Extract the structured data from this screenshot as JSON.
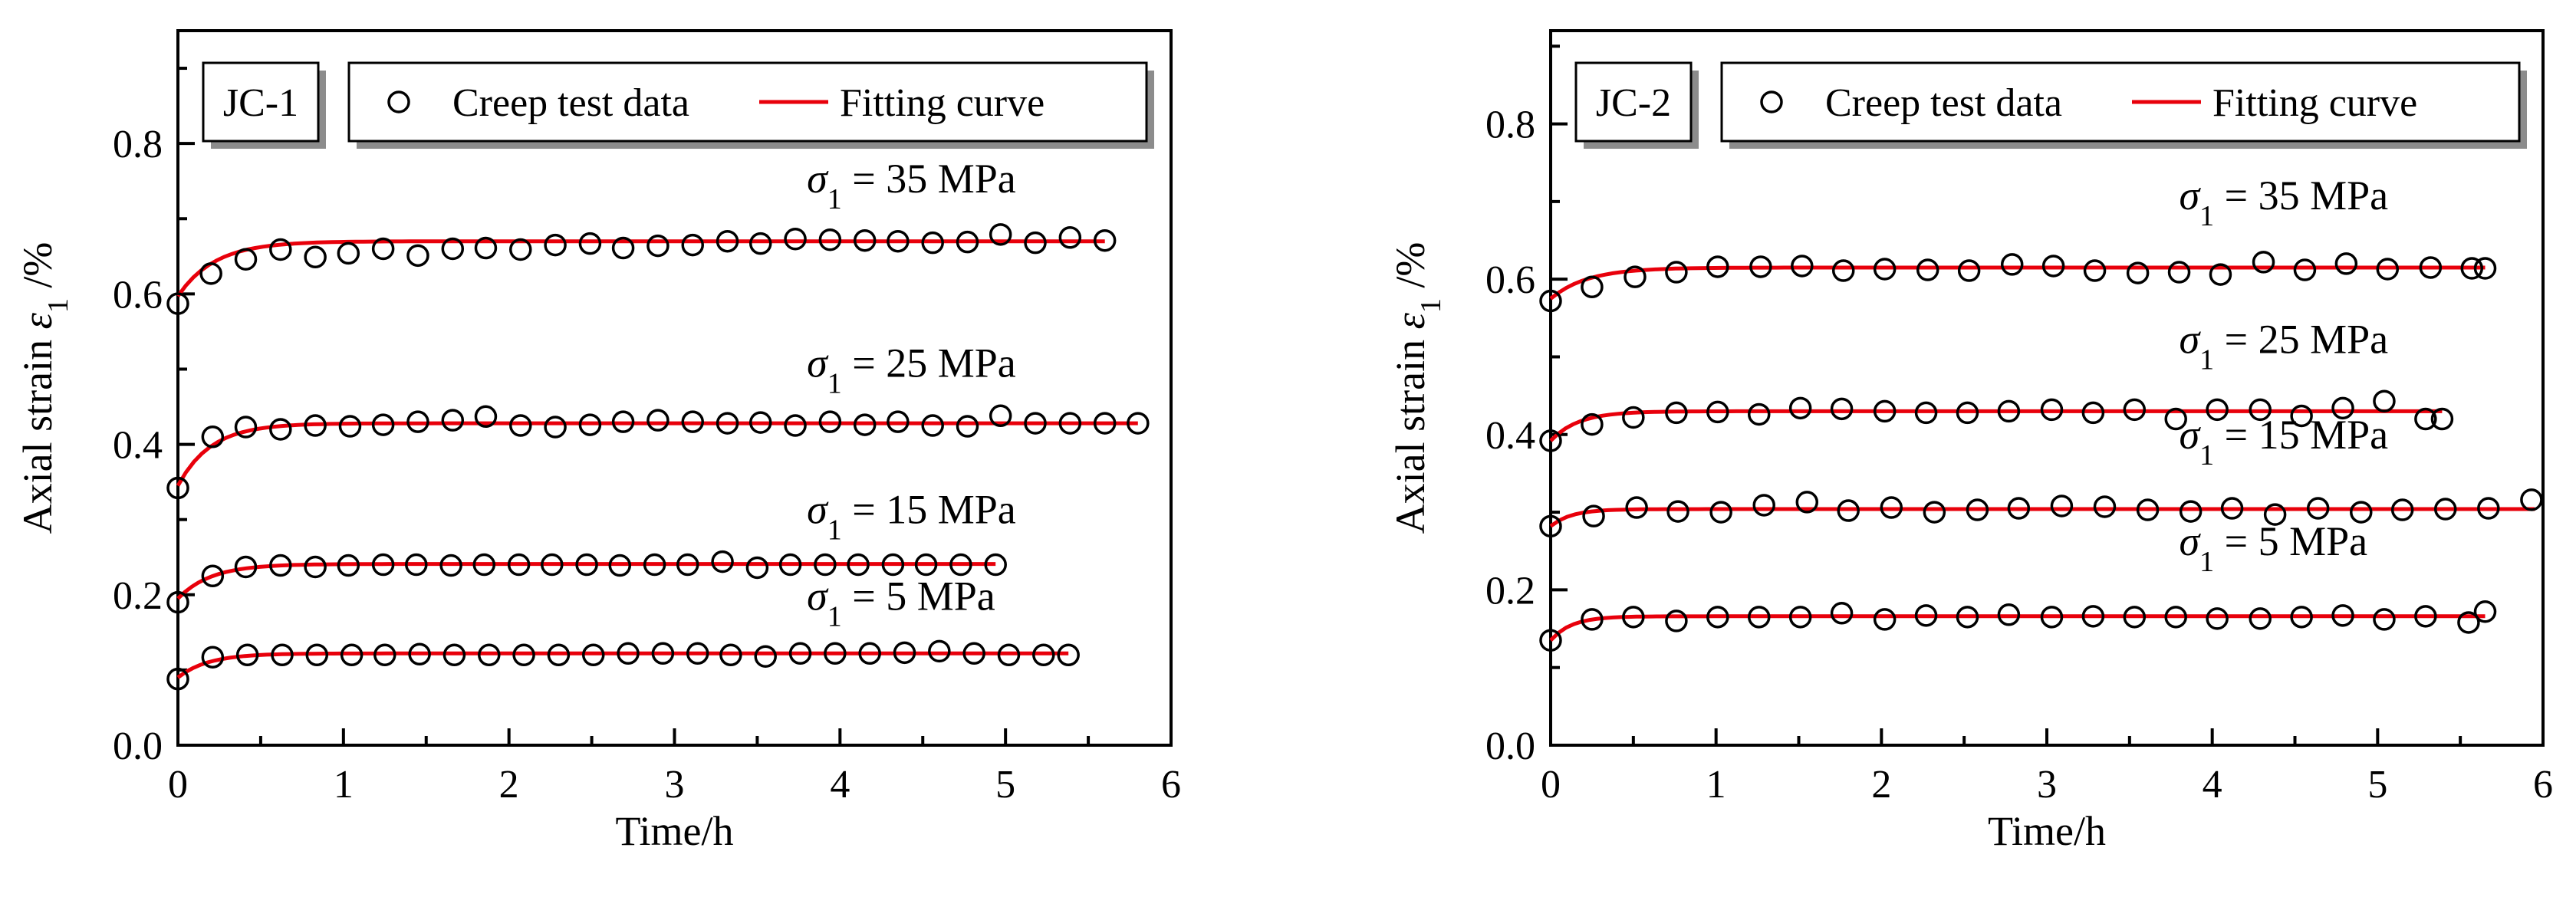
{
  "chart_data": [
    {
      "type": "scatter",
      "panel_label": "JC-1",
      "xlabel": "Time/h",
      "ylabel": {
        "prefix": "Axial strain ",
        "symbol": "ε",
        "sub": "1",
        "suffix": " /%"
      },
      "xlim": [
        0,
        6
      ],
      "ylim": [
        0,
        0.95
      ],
      "xticks": [
        0,
        1,
        2,
        3,
        4,
        5,
        6
      ],
      "yticks": [
        0.0,
        0.2,
        0.4,
        0.6,
        0.8
      ],
      "ytick_labels": [
        "0.0",
        "0.2",
        "0.4",
        "0.6",
        "0.8"
      ],
      "legend": {
        "markers_label": "Creep test data",
        "line_label": "Fitting curve"
      },
      "series": [
        {
          "name": "σ1 = 35 MPa",
          "label_symbol": "σ",
          "label_sub": "1",
          "label_value": " = 35 MPa",
          "fit": {
            "a": 0.597,
            "b": 0.073,
            "k": 4.5,
            "xend": 5.6
          },
          "label_pos": [
            3.8,
            0.735
          ],
          "x": [
            0,
            0.2,
            0.41,
            0.62,
            0.83,
            1.03,
            1.24,
            1.45,
            1.66,
            1.86,
            2.07,
            2.28,
            2.49,
            2.69,
            2.9,
            3.11,
            3.32,
            3.52,
            3.73,
            3.94,
            4.15,
            4.35,
            4.56,
            4.77,
            4.97,
            5.18,
            5.39,
            5.6
          ],
          "y": [
            0.587,
            0.627,
            0.646,
            0.659,
            0.649,
            0.654,
            0.66,
            0.651,
            0.66,
            0.661,
            0.659,
            0.665,
            0.667,
            0.661,
            0.664,
            0.665,
            0.67,
            0.667,
            0.673,
            0.672,
            0.671,
            0.67,
            0.668,
            0.669,
            0.679,
            0.668,
            0.675,
            0.671
          ]
        },
        {
          "name": "σ1 = 25 MPa",
          "label_symbol": "σ",
          "label_sub": "1",
          "label_value": " = 25 MPa",
          "fit": {
            "a": 0.345,
            "b": 0.083,
            "k": 5.0,
            "xend": 5.8
          },
          "label_pos": [
            3.8,
            0.49
          ],
          "x": [
            0,
            0.21,
            0.41,
            0.62,
            0.83,
            1.04,
            1.24,
            1.45,
            1.66,
            1.86,
            2.07,
            2.28,
            2.49,
            2.69,
            2.9,
            3.11,
            3.32,
            3.52,
            3.73,
            3.94,
            4.15,
            4.35,
            4.56,
            4.77,
            4.97,
            5.18,
            5.39,
            5.6,
            5.8
          ],
          "y": [
            0.342,
            0.41,
            0.423,
            0.42,
            0.425,
            0.424,
            0.426,
            0.43,
            0.432,
            0.437,
            0.425,
            0.423,
            0.426,
            0.43,
            0.432,
            0.43,
            0.428,
            0.429,
            0.425,
            0.43,
            0.426,
            0.43,
            0.425,
            0.424,
            0.438,
            0.428,
            0.428,
            0.428,
            0.428
          ]
        },
        {
          "name": "σ1 = 15 MPa",
          "label_symbol": "σ",
          "label_sub": "1",
          "label_value": " = 15 MPa",
          "fit": {
            "a": 0.195,
            "b": 0.046,
            "k": 5.0,
            "xend": 4.94
          },
          "label_pos": [
            3.8,
            0.295
          ],
          "x": [
            0,
            0.21,
            0.41,
            0.62,
            0.83,
            1.03,
            1.24,
            1.44,
            1.65,
            1.85,
            2.06,
            2.26,
            2.47,
            2.67,
            2.88,
            3.08,
            3.29,
            3.5,
            3.7,
            3.91,
            4.11,
            4.32,
            4.52,
            4.73,
            4.94
          ],
          "y": [
            0.19,
            0.225,
            0.237,
            0.239,
            0.237,
            0.239,
            0.24,
            0.24,
            0.239,
            0.24,
            0.24,
            0.24,
            0.24,
            0.239,
            0.24,
            0.24,
            0.244,
            0.236,
            0.24,
            0.24,
            0.24,
            0.24,
            0.24,
            0.24,
            0.24
          ]
        },
        {
          "name": "σ1 = 5 MPa",
          "label_symbol": "σ",
          "label_sub": "1",
          "label_value": " = 5 MPa",
          "fit": {
            "a": 0.09,
            "b": 0.032,
            "k": 5.5,
            "xend": 5.38
          },
          "label_pos": [
            3.8,
            0.18
          ],
          "x": [
            0,
            0.21,
            0.42,
            0.63,
            0.84,
            1.05,
            1.25,
            1.46,
            1.67,
            1.88,
            2.09,
            2.3,
            2.51,
            2.72,
            2.93,
            3.14,
            3.34,
            3.55,
            3.76,
            3.97,
            4.18,
            4.39,
            4.6,
            4.81,
            5.02,
            5.23,
            5.38
          ],
          "y": [
            0.088,
            0.117,
            0.12,
            0.12,
            0.12,
            0.12,
            0.12,
            0.121,
            0.12,
            0.12,
            0.12,
            0.12,
            0.12,
            0.122,
            0.122,
            0.122,
            0.12,
            0.118,
            0.122,
            0.122,
            0.122,
            0.123,
            0.125,
            0.122,
            0.12,
            0.12,
            0.12
          ]
        }
      ]
    },
    {
      "type": "scatter",
      "panel_label": "JC-2",
      "xlabel": "Time/h",
      "ylabel": {
        "prefix": "Axial strain ",
        "symbol": "ε",
        "sub": "1",
        "suffix": " /%"
      },
      "xlim": [
        0,
        6
      ],
      "ylim": [
        0,
        0.92
      ],
      "xticks": [
        0,
        1,
        2,
        3,
        4,
        5,
        6
      ],
      "yticks": [
        0.0,
        0.2,
        0.4,
        0.6,
        0.8
      ],
      "ytick_labels": [
        "0.0",
        "0.2",
        "0.4",
        "0.6",
        "0.8"
      ],
      "legend": {
        "markers_label": "Creep test data",
        "line_label": "Fitting curve"
      },
      "series": [
        {
          "name": "σ1 = 35 MPa",
          "label_symbol": "σ",
          "label_sub": "1",
          "label_value": " = 35 MPa",
          "fit": {
            "a": 0.575,
            "b": 0.04,
            "k": 4.5,
            "xend": 5.65
          },
          "label_pos": [
            3.8,
            0.69
          ],
          "x": [
            0,
            0.25,
            0.51,
            0.76,
            1.01,
            1.27,
            1.52,
            1.77,
            2.02,
            2.28,
            2.53,
            2.79,
            3.04,
            3.29,
            3.55,
            3.8,
            4.05,
            4.31,
            4.56,
            4.81,
            5.06,
            5.32,
            5.57,
            5.65
          ],
          "y": [
            0.572,
            0.59,
            0.603,
            0.609,
            0.616,
            0.616,
            0.617,
            0.611,
            0.613,
            0.612,
            0.611,
            0.619,
            0.617,
            0.611,
            0.608,
            0.609,
            0.606,
            0.622,
            0.612,
            0.62,
            0.613,
            0.615,
            0.614,
            0.614
          ]
        },
        {
          "name": "σ1 = 25 MPa",
          "label_symbol": "σ",
          "label_sub": "1",
          "label_value": " = 25 MPa",
          "fit": {
            "a": 0.392,
            "b": 0.038,
            "k": 6.0,
            "xend": 5.39
          },
          "label_pos": [
            3.8,
            0.505
          ],
          "x": [
            0,
            0.25,
            0.5,
            0.76,
            1.01,
            1.26,
            1.51,
            1.76,
            2.02,
            2.27,
            2.52,
            2.77,
            3.03,
            3.28,
            3.53,
            3.78,
            4.03,
            4.29,
            4.54,
            4.79,
            5.04,
            5.29,
            5.39
          ],
          "y": [
            0.392,
            0.413,
            0.422,
            0.428,
            0.429,
            0.426,
            0.434,
            0.433,
            0.43,
            0.428,
            0.428,
            0.43,
            0.432,
            0.428,
            0.432,
            0.42,
            0.432,
            0.432,
            0.424,
            0.434,
            0.443,
            0.42,
            0.42
          ]
        },
        {
          "name": "σ1 = 15 MPa",
          "label_symbol": "σ",
          "label_sub": "1",
          "label_value": " = 15 MPa",
          "fit": {
            "a": 0.282,
            "b": 0.022,
            "k": 8.0,
            "xend": 5.95
          },
          "label_pos": [
            3.8,
            0.382
          ],
          "x": [
            0,
            0.26,
            0.52,
            0.77,
            1.03,
            1.29,
            1.55,
            1.8,
            2.06,
            2.32,
            2.58,
            2.83,
            3.09,
            3.35,
            3.61,
            3.87,
            4.12,
            4.38,
            4.64,
            4.9,
            5.15,
            5.41,
            5.67,
            5.93
          ],
          "y": [
            0.282,
            0.295,
            0.306,
            0.301,
            0.3,
            0.309,
            0.313,
            0.302,
            0.306,
            0.3,
            0.303,
            0.305,
            0.308,
            0.307,
            0.303,
            0.301,
            0.305,
            0.297,
            0.305,
            0.3,
            0.303,
            0.304,
            0.305,
            0.316
          ]
        },
        {
          "name": "σ1 = 5 MPa",
          "label_symbol": "σ",
          "label_sub": "1",
          "label_value": " = 5 MPa",
          "fit": {
            "a": 0.135,
            "b": 0.031,
            "k": 8.0,
            "xend": 5.65
          },
          "label_pos": [
            3.8,
            0.245
          ],
          "x": [
            0,
            0.25,
            0.5,
            0.76,
            1.01,
            1.26,
            1.51,
            1.76,
            2.02,
            2.27,
            2.52,
            2.77,
            3.03,
            3.28,
            3.53,
            3.78,
            4.03,
            4.29,
            4.54,
            4.79,
            5.04,
            5.29,
            5.55,
            5.65
          ],
          "y": [
            0.135,
            0.162,
            0.165,
            0.16,
            0.165,
            0.165,
            0.165,
            0.17,
            0.162,
            0.167,
            0.165,
            0.168,
            0.165,
            0.166,
            0.165,
            0.165,
            0.163,
            0.163,
            0.165,
            0.167,
            0.162,
            0.166,
            0.158,
            0.172
          ]
        }
      ]
    }
  ],
  "style": {
    "fit_color": "#e8000b",
    "marker_color": "#000000",
    "axis_color": "#000000",
    "legend_shadow": "#8c8c8c"
  }
}
